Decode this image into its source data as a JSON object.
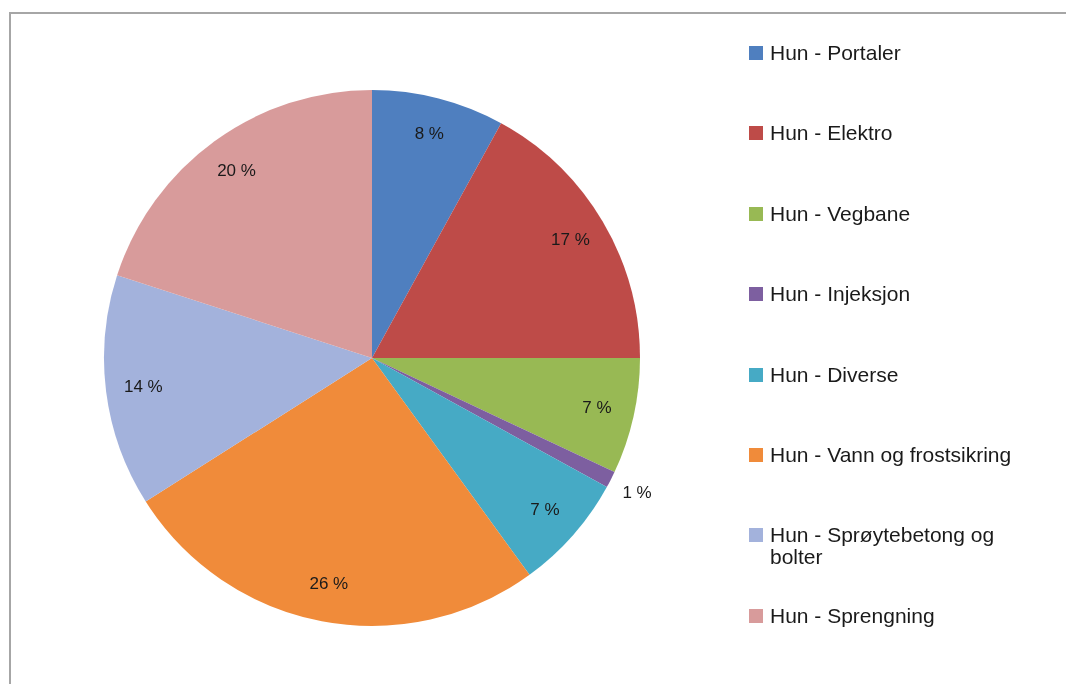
{
  "chart_data": {
    "type": "pie",
    "categories": [
      "Hun - Portaler",
      "Hun - Elektro",
      "Hun - Vegbane",
      "Hun - Injeksjon",
      "Hun - Diverse",
      "Hun - Vann og frostsikring",
      "Hun - Sprøytebetong og bolter",
      "Hun - Sprengning"
    ],
    "values": [
      8,
      17,
      7,
      1,
      7,
      26,
      14,
      20
    ],
    "colors": [
      "#4f7fbf",
      "#be4b48",
      "#98b954",
      "#7d5fa0",
      "#46aac5",
      "#f08b3a",
      "#a3b2dc",
      "#d89b9b"
    ],
    "value_labels": [
      "8 %",
      "17 %",
      "7 %",
      "1 %",
      "7 %",
      "26 %",
      "14 %",
      "20 %"
    ],
    "legend": "right"
  }
}
